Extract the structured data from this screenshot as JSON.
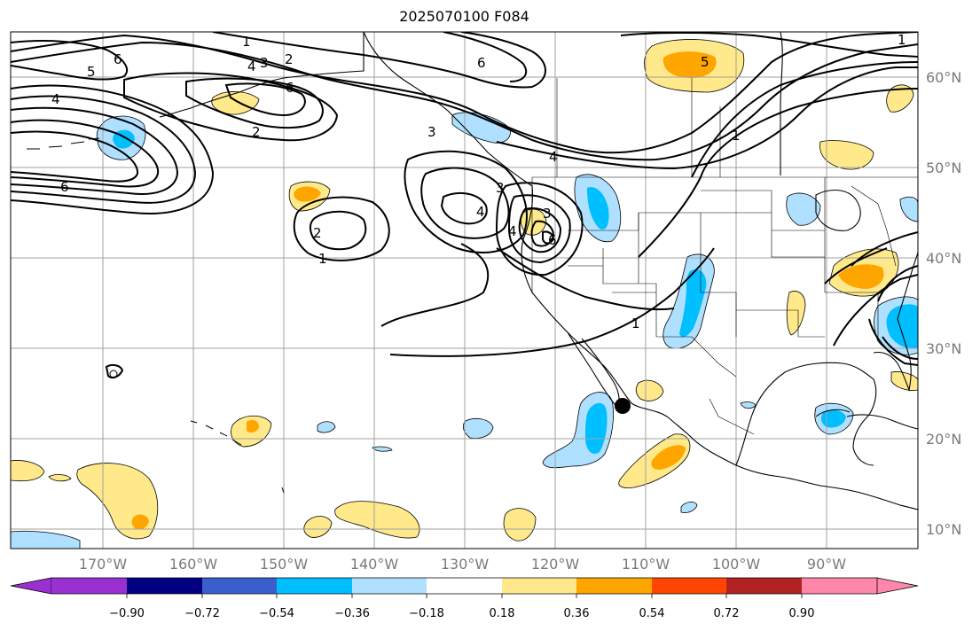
{
  "title": "2025070100 F084",
  "latitude_labels": [
    "60°N",
    "50°N",
    "40°N",
    "30°N",
    "20°N",
    "10°N"
  ],
  "longitude_labels": [
    "170°W",
    "160°W",
    "150°W",
    "140°W",
    "130°W",
    "120°W",
    "110°W",
    "100°W",
    "90°W"
  ],
  "colorbar": {
    "ticks": [
      "−0.90",
      "−0.72",
      "−0.54",
      "−0.36",
      "−0.18",
      "0.18",
      "0.36",
      "0.54",
      "0.72",
      "0.90"
    ],
    "colors": [
      "#9b30d0",
      "#000080",
      "#3a5fcd",
      "#00bfff",
      "#b0e0ff",
      "#ffffff",
      "#ffe98a",
      "#ffa500",
      "#ff4500",
      "#b22222",
      "#ff88aa"
    ]
  },
  "contour_labels": [
    "1",
    "2",
    "3",
    "4",
    "5",
    "6"
  ],
  "fill_colors": {
    "light_yellow": "#ffe98a",
    "orange": "#ffa500",
    "light_blue": "#b0e0ff",
    "blue": "#00bfff"
  }
}
